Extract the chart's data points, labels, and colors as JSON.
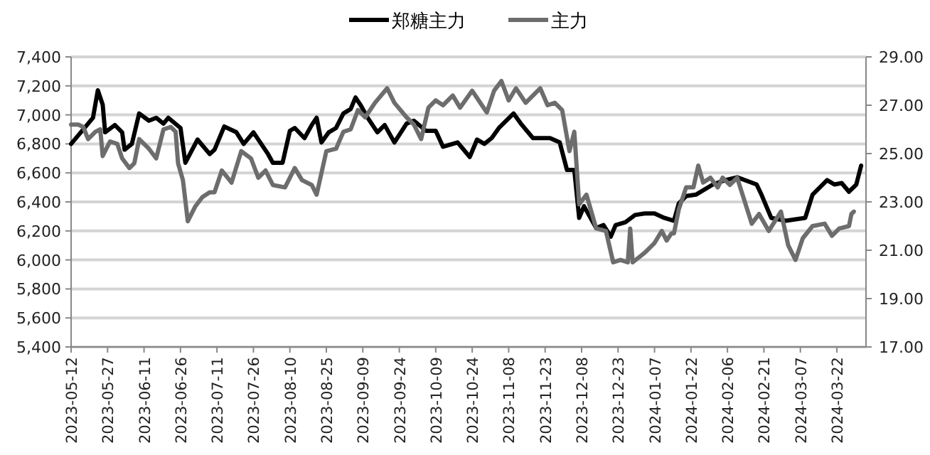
{
  "chart_data": {
    "type": "line",
    "legend": "top",
    "grid": "y",
    "xlim": [
      "2023-05-12",
      "2024-04-03"
    ],
    "xticks": [
      "2023-05-12",
      "2023-05-27",
      "2023-06-11",
      "2023-06-26",
      "2023-07-11",
      "2023-07-26",
      "2023-08-10",
      "2023-08-25",
      "2023-09-09",
      "2023-09-24",
      "2023-10-09",
      "2023-10-24",
      "2023-11-08",
      "2023-11-23",
      "2023-12-08",
      "2023-12-23",
      "2024-01-07",
      "2024-01-22",
      "2024-02-06",
      "2024-02-21",
      "2024-03-07",
      "2024-03-22"
    ],
    "ylim": [
      5400,
      7400
    ],
    "yticks": [
      {
        "value": 5400,
        "label": "5,400"
      },
      {
        "value": 5600,
        "label": "5,600"
      },
      {
        "value": 5800,
        "label": "5,800"
      },
      {
        "value": 6000,
        "label": "6,000"
      },
      {
        "value": 6200,
        "label": "6,200"
      },
      {
        "value": 6400,
        "label": "6,400"
      },
      {
        "value": 6600,
        "label": "6,600"
      },
      {
        "value": 6800,
        "label": "6,800"
      },
      {
        "value": 7000,
        "label": "7,000"
      },
      {
        "value": 7200,
        "label": "7,200"
      },
      {
        "value": 7400,
        "label": "7,400"
      }
    ],
    "y2lim": [
      17,
      29
    ],
    "y2ticks": [
      {
        "value": 17,
        "label": "17.00"
      },
      {
        "value": 19,
        "label": "19.00"
      },
      {
        "value": 21,
        "label": "21.00"
      },
      {
        "value": 23,
        "label": "23.00"
      },
      {
        "value": 25,
        "label": "25.00"
      },
      {
        "value": 27,
        "label": "27.00"
      },
      {
        "value": 29,
        "label": "29.00"
      }
    ],
    "series": [
      {
        "name": "郑糖主力",
        "color": "#000000",
        "x": [
          "2023-05-12",
          "2023-05-19",
          "2023-05-21",
          "2023-05-23",
          "2023-05-25",
          "2023-05-26",
          "2023-05-30",
          "2023-06-02",
          "2023-06-03",
          "2023-06-06",
          "2023-06-09",
          "2023-06-13",
          "2023-06-16",
          "2023-06-19",
          "2023-06-21",
          "2023-06-26",
          "2023-06-28",
          "2023-07-03",
          "2023-07-08",
          "2023-07-10",
          "2023-07-14",
          "2023-07-19",
          "2023-07-22",
          "2023-07-26",
          "2023-08-01",
          "2023-08-03",
          "2023-08-07",
          "2023-08-10",
          "2023-08-12",
          "2023-08-16",
          "2023-08-19",
          "2023-08-21",
          "2023-08-23",
          "2023-08-26",
          "2023-08-29",
          "2023-09-01",
          "2023-09-04",
          "2023-09-06",
          "2023-09-08",
          "2023-09-11",
          "2023-09-15",
          "2023-09-18",
          "2023-09-22",
          "2023-09-27",
          "2023-09-30",
          "2023-10-05",
          "2023-10-09",
          "2023-10-12",
          "2023-10-18",
          "2023-10-23",
          "2023-10-26",
          "2023-10-29",
          "2023-11-01",
          "2023-11-04",
          "2023-11-10",
          "2023-11-13",
          "2023-11-18",
          "2023-11-25",
          "2023-11-29",
          "2023-12-02",
          "2023-12-05",
          "2023-12-07",
          "2023-12-09",
          "2023-12-11",
          "2023-12-14",
          "2023-12-17",
          "2023-12-20",
          "2023-12-22",
          "2023-12-26",
          "2023-12-30",
          "2024-01-03",
          "2024-01-07",
          "2024-01-11",
          "2024-01-15",
          "2024-01-17",
          "2024-01-20",
          "2024-01-24",
          "2024-01-31",
          "2024-02-05",
          "2024-02-10",
          "2024-02-18",
          "2024-02-20",
          "2024-02-24",
          "2024-03-01",
          "2024-03-09",
          "2024-03-12",
          "2024-03-18",
          "2024-03-21",
          "2024-03-24",
          "2024-03-27",
          "2024-03-30",
          "2024-04-01"
        ],
        "values": [
          6800,
          6940,
          6980,
          7170,
          7070,
          6880,
          6930,
          6880,
          6760,
          6800,
          7010,
          6960,
          6980,
          6940,
          6980,
          6910,
          6670,
          6830,
          6730,
          6760,
          6920,
          6880,
          6800,
          6880,
          6730,
          6670,
          6670,
          6890,
          6910,
          6840,
          6930,
          6980,
          6810,
          6880,
          6910,
          7010,
          7040,
          7120,
          7070,
          6980,
          6880,
          6930,
          6810,
          6940,
          6960,
          6890,
          6890,
          6780,
          6810,
          6710,
          6830,
          6800,
          6840,
          6910,
          7010,
          6940,
          6840,
          6840,
          6810,
          6620,
          6620,
          6290,
          6370,
          6310,
          6220,
          6240,
          6160,
          6240,
          6260,
          6310,
          6320,
          6320,
          6290,
          6270,
          6390,
          6440,
          6450,
          6520,
          6550,
          6570,
          6520,
          6450,
          6290,
          6270,
          6290,
          6450,
          6550,
          6520,
          6530,
          6470,
          6520,
          6650
        ]
      },
      {
        "name": "主力",
        "color": "#6d6d6d",
        "axis": "y2",
        "x": [
          "2023-05-12",
          "2023-05-15",
          "2023-05-17",
          "2023-05-19",
          "2023-05-22",
          "2023-05-24",
          "2023-05-25",
          "2023-05-28",
          "2023-05-31",
          "2023-06-02",
          "2023-06-05",
          "2023-06-07",
          "2023-06-09",
          "2023-06-13",
          "2023-06-16",
          "2023-06-19",
          "2023-06-22",
          "2023-06-24",
          "2023-06-25",
          "2023-06-27",
          "2023-06-29",
          "2023-07-02",
          "2023-07-05",
          "2023-07-08",
          "2023-07-10",
          "2023-07-13",
          "2023-07-17",
          "2023-07-21",
          "2023-07-25",
          "2023-07-28",
          "2023-07-31",
          "2023-08-03",
          "2023-08-08",
          "2023-08-12",
          "2023-08-15",
          "2023-08-19",
          "2023-08-21",
          "2023-08-25",
          "2023-08-29",
          "2023-09-01",
          "2023-09-04",
          "2023-09-07",
          "2023-09-10",
          "2023-09-14",
          "2023-09-19",
          "2023-09-22",
          "2023-09-27",
          "2023-09-30",
          "2023-10-03",
          "2023-10-06",
          "2023-10-09",
          "2023-10-12",
          "2023-10-16",
          "2023-10-19",
          "2023-10-24",
          "2023-10-28",
          "2023-10-30",
          "2023-11-02",
          "2023-11-05",
          "2023-11-08",
          "2023-11-11",
          "2023-11-15",
          "2023-11-21",
          "2023-11-24",
          "2023-11-27",
          "2023-11-30",
          "2023-12-03",
          "2023-12-05",
          "2023-12-07",
          "2023-12-10",
          "2023-12-14",
          "2023-12-18",
          "2023-12-21",
          "2023-12-24",
          "2023-12-27",
          "2023-12-28",
          "2023-12-29",
          "2024-01-03",
          "2024-01-07",
          "2024-01-10",
          "2024-01-12",
          "2024-01-14",
          "2024-01-15",
          "2024-01-17",
          "2024-01-20",
          "2024-01-23",
          "2024-01-25",
          "2024-01-27",
          "2024-01-30",
          "2024-02-02",
          "2024-02-04",
          "2024-02-07",
          "2024-02-10",
          "2024-02-16",
          "2024-02-19",
          "2024-02-23",
          "2024-02-28",
          "2024-03-02",
          "2024-03-05",
          "2024-03-08",
          "2024-03-12",
          "2024-03-17",
          "2024-03-20",
          "2024-03-23",
          "2024-03-27",
          "2024-03-28",
          "2024-03-29"
        ],
        "values": [
          26.2,
          26.2,
          26.1,
          25.6,
          25.9,
          26.0,
          24.9,
          25.5,
          25.4,
          24.8,
          24.4,
          24.6,
          25.6,
          25.2,
          24.8,
          26.0,
          26.1,
          25.9,
          24.6,
          23.9,
          22.2,
          22.8,
          23.2,
          23.4,
          23.4,
          24.3,
          23.8,
          25.1,
          24.8,
          24.0,
          24.3,
          23.7,
          23.6,
          24.4,
          23.9,
          23.7,
          23.3,
          25.1,
          25.2,
          25.9,
          26.0,
          26.8,
          26.5,
          27.1,
          27.7,
          27.1,
          26.5,
          26.2,
          25.6,
          26.9,
          27.2,
          27.0,
          27.4,
          26.9,
          27.6,
          27.0,
          26.7,
          27.6,
          28.0,
          27.2,
          27.7,
          27.1,
          27.7,
          27.0,
          27.1,
          26.8,
          25.1,
          25.9,
          22.9,
          23.3,
          21.9,
          21.8,
          20.5,
          20.6,
          20.5,
          21.9,
          20.5,
          20.9,
          21.3,
          21.8,
          21.4,
          21.7,
          21.7,
          22.7,
          23.6,
          23.6,
          24.5,
          23.8,
          24.0,
          23.6,
          24.0,
          23.7,
          24.0,
          22.1,
          22.5,
          21.8,
          22.6,
          21.2,
          20.6,
          21.5,
          22.0,
          22.1,
          21.6,
          21.9,
          22.0,
          22.5,
          22.6
        ]
      }
    ]
  }
}
